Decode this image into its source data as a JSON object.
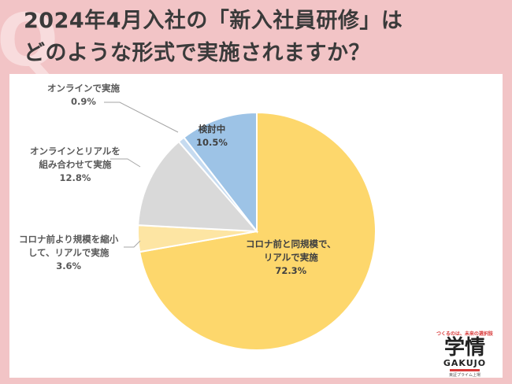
{
  "title": {
    "line1": "2024年4月入社の「新入社員研修」は",
    "line2": "どのような形式で実施されますか？"
  },
  "q_mark": "Q",
  "chart_data": {
    "type": "pie",
    "start_angle_deg": 0,
    "direction": "clockwise",
    "slices": [
      {
        "label_lines": [
          "コロナ前と同規模で、",
          "リアルで実施"
        ],
        "value": 72.3,
        "value_text": "72.3%",
        "color": "#fdd76c"
      },
      {
        "label_lines": [
          "コロナ前より規模を縮小",
          "して、リアルで実施"
        ],
        "value": 3.6,
        "value_text": "3.6%",
        "color": "#fde5a3"
      },
      {
        "label_lines": [
          "オンラインとリアルを",
          "組み合わせて実施"
        ],
        "value": 12.8,
        "value_text": "12.8%",
        "color": "#d9d9d9"
      },
      {
        "label_lines": [
          "オンラインで実施"
        ],
        "value": 0.9,
        "value_text": "0.9%",
        "color": "#c6dbf0"
      },
      {
        "label_lines": [
          "検討中"
        ],
        "value": 10.5,
        "value_text": "10.5%",
        "color": "#9dc3e6"
      }
    ]
  },
  "logo": {
    "tagline": "つくるのは、未来の選択肢",
    "mark": "学情",
    "wordmark": "GAKUJO",
    "sub": "東証プライム上場"
  }
}
